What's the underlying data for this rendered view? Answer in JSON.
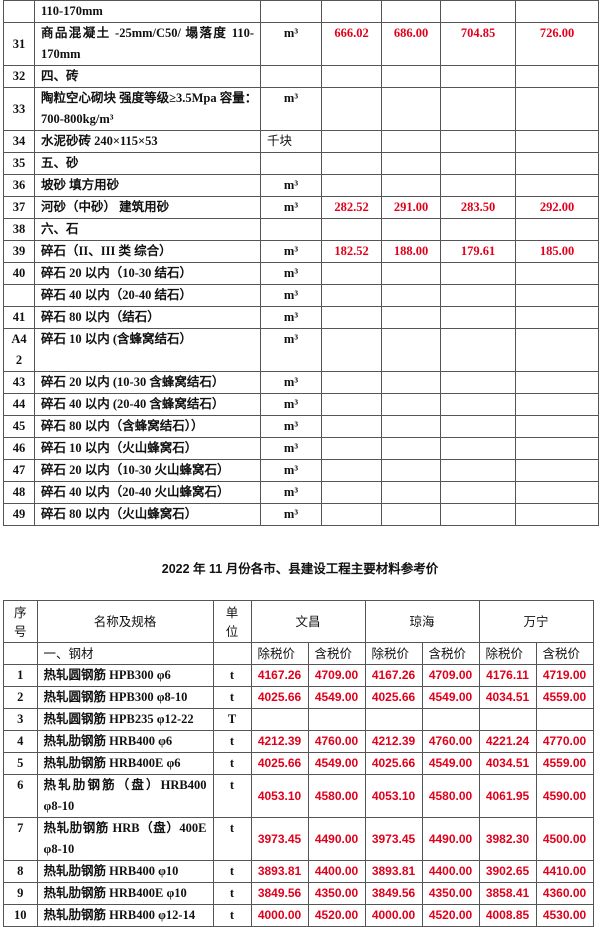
{
  "table1": {
    "rows": [
      {
        "no": "",
        "name": "110-170mm",
        "unit": "",
        "p": [
          "",
          "",
          "",
          ""
        ]
      },
      {
        "no": "31",
        "name": "商品混凝土 -25mm/C50/ 塌落度 110-170mm",
        "unit": "m³",
        "p": [
          "666.02",
          "686.00",
          "704.85",
          "726.00"
        ],
        "tall": true
      },
      {
        "no": "32",
        "name": "四、砖",
        "unit": "",
        "p": [
          "",
          "",
          "",
          ""
        ]
      },
      {
        "no": "33",
        "name": "陶粒空心砌块 强度等级≥3.5Mpa 容量：700-800kg/m³",
        "unit": "m³",
        "p": [
          "",
          "",
          "",
          ""
        ],
        "tall": true
      },
      {
        "no": "34",
        "name": "水泥砂砖 240×115×53",
        "unit": "千块",
        "p": [
          "",
          "",
          "",
          ""
        ]
      },
      {
        "no": "35",
        "name": "五、砂",
        "unit": "",
        "p": [
          "",
          "",
          "",
          ""
        ]
      },
      {
        "no": "36",
        "name": "坡砂 填方用砂",
        "unit": "m³",
        "p": [
          "",
          "",
          "",
          ""
        ]
      },
      {
        "no": "37",
        "name": "河砂（中砂） 建筑用砂",
        "unit": "m³",
        "p": [
          "282.52",
          "291.00",
          "283.50",
          "292.00"
        ]
      },
      {
        "no": "38",
        "name": "六、石",
        "unit": "",
        "p": [
          "",
          "",
          "",
          ""
        ]
      },
      {
        "no": "39",
        "name": "碎石（II、III 类 综合）",
        "unit": "m³",
        "p": [
          "182.52",
          "188.00",
          "179.61",
          "185.00"
        ]
      },
      {
        "no": "40",
        "name": "碎石 20 以内（10-30 结石）",
        "unit": "m³",
        "p": [
          "",
          "",
          "",
          ""
        ]
      },
      {
        "no": "",
        "name": "碎石 40 以内（20-40 结石）",
        "unit": "m³",
        "p": [
          "",
          "",
          "",
          ""
        ]
      },
      {
        "no": "41",
        "name": "碎石 80 以内（结石）",
        "unit": "m³",
        "p": [
          "",
          "",
          "",
          ""
        ]
      },
      {
        "no": "A4 2",
        "name": "碎石 10 以内 (含蜂窝结石）",
        "unit": "m³",
        "p": [
          "",
          "",
          "",
          ""
        ],
        "tall": true
      },
      {
        "no": "43",
        "name": "碎石 20 以内 (10-30 含蜂窝结石）",
        "unit": "m³",
        "p": [
          "",
          "",
          "",
          ""
        ]
      },
      {
        "no": "44",
        "name": "碎石 40 以内 (20-40 含蜂窝结石）",
        "unit": "m³",
        "p": [
          "",
          "",
          "",
          ""
        ]
      },
      {
        "no": "45",
        "name": "碎石 80 以内（含蜂窝结石））",
        "unit": "m³",
        "p": [
          "",
          "",
          "",
          ""
        ]
      },
      {
        "no": "46",
        "name": "碎石 10 以内（火山蜂窝石）",
        "unit": "m³",
        "p": [
          "",
          "",
          "",
          ""
        ]
      },
      {
        "no": "47",
        "name": "碎石 20 以内（10-30 火山蜂窝石）",
        "unit": "m³",
        "p": [
          "",
          "",
          "",
          ""
        ]
      },
      {
        "no": "48",
        "name": "碎石 40 以内（20-40 火山蜂窝石）",
        "unit": "m³",
        "p": [
          "",
          "",
          "",
          ""
        ]
      },
      {
        "no": "49",
        "name": "碎石 80 以内（火山蜂窝石）",
        "unit": "m³",
        "p": [
          "",
          "",
          "",
          ""
        ]
      }
    ]
  },
  "title": "2022 年 11 月份各市、县建设工程主要材料参考价",
  "table2": {
    "header": {
      "no": "序号",
      "name": "名称及规格",
      "unit": "单位",
      "cities": [
        "文昌",
        "琼海",
        "万宁"
      ]
    },
    "section": "一、钢材",
    "price_labels": [
      "除税价",
      "含税价",
      "除税价",
      "含税价",
      "除税价",
      "含税价"
    ],
    "rows": [
      {
        "no": "1",
        "name": "热轧圆钢筋 HPB300 φ6",
        "unit": "t",
        "p": [
          "4167.26",
          "4709.00",
          "4167.26",
          "4709.00",
          "4176.11",
          "4719.00"
        ]
      },
      {
        "no": "2",
        "name": "热轧圆钢筋 HPB300 φ8-10",
        "unit": "t",
        "p": [
          "4025.66",
          "4549.00",
          "4025.66",
          "4549.00",
          "4034.51",
          "4559.00"
        ]
      },
      {
        "no": "3",
        "name": "热轧圆钢筋 HPB235 φ12-22",
        "unit": "T",
        "p": [
          "",
          "",
          "",
          "",
          "",
          ""
        ]
      },
      {
        "no": "4",
        "name": "热轧肋钢筋 HRB400 φ6",
        "unit": "t",
        "p": [
          "4212.39",
          "4760.00",
          "4212.39",
          "4760.00",
          "4221.24",
          "4770.00"
        ]
      },
      {
        "no": "5",
        "name": "热轧肋钢筋 HRB400E φ6",
        "unit": "t",
        "p": [
          "4025.66",
          "4549.00",
          "4025.66",
          "4549.00",
          "4034.51",
          "4559.00"
        ]
      },
      {
        "no": "6",
        "name": "热轧肋钢筋（盘）HRB400 φ8-10",
        "unit": "t",
        "p": [
          "4053.10",
          "4580.00",
          "4053.10",
          "4580.00",
          "4061.95",
          "4590.00"
        ],
        "tall": true
      },
      {
        "no": "7",
        "name": "热轧肋钢筋 HRB（盘）400E φ8-10",
        "unit": "t",
        "p": [
          "3973.45",
          "4490.00",
          "3973.45",
          "4490.00",
          "3982.30",
          "4500.00"
        ],
        "tall": true
      },
      {
        "no": "8",
        "name": "热轧肋钢筋 HRB400 φ10",
        "unit": "t",
        "p": [
          "3893.81",
          "4400.00",
          "3893.81",
          "4400.00",
          "3902.65",
          "4410.00"
        ]
      },
      {
        "no": "9",
        "name": "热轧肋钢筋 HRB400E φ10",
        "unit": "t",
        "p": [
          "3849.56",
          "4350.00",
          "3849.56",
          "4350.00",
          "3858.41",
          "4360.00"
        ]
      },
      {
        "no": "10",
        "name": "热轧肋钢筋 HRB400 φ12-14",
        "unit": "t",
        "p": [
          "4000.00",
          "4520.00",
          "4000.00",
          "4520.00",
          "4008.85",
          "4530.00"
        ]
      }
    ]
  },
  "colors": {
    "price": "#e0001b",
    "border": "#555555"
  }
}
